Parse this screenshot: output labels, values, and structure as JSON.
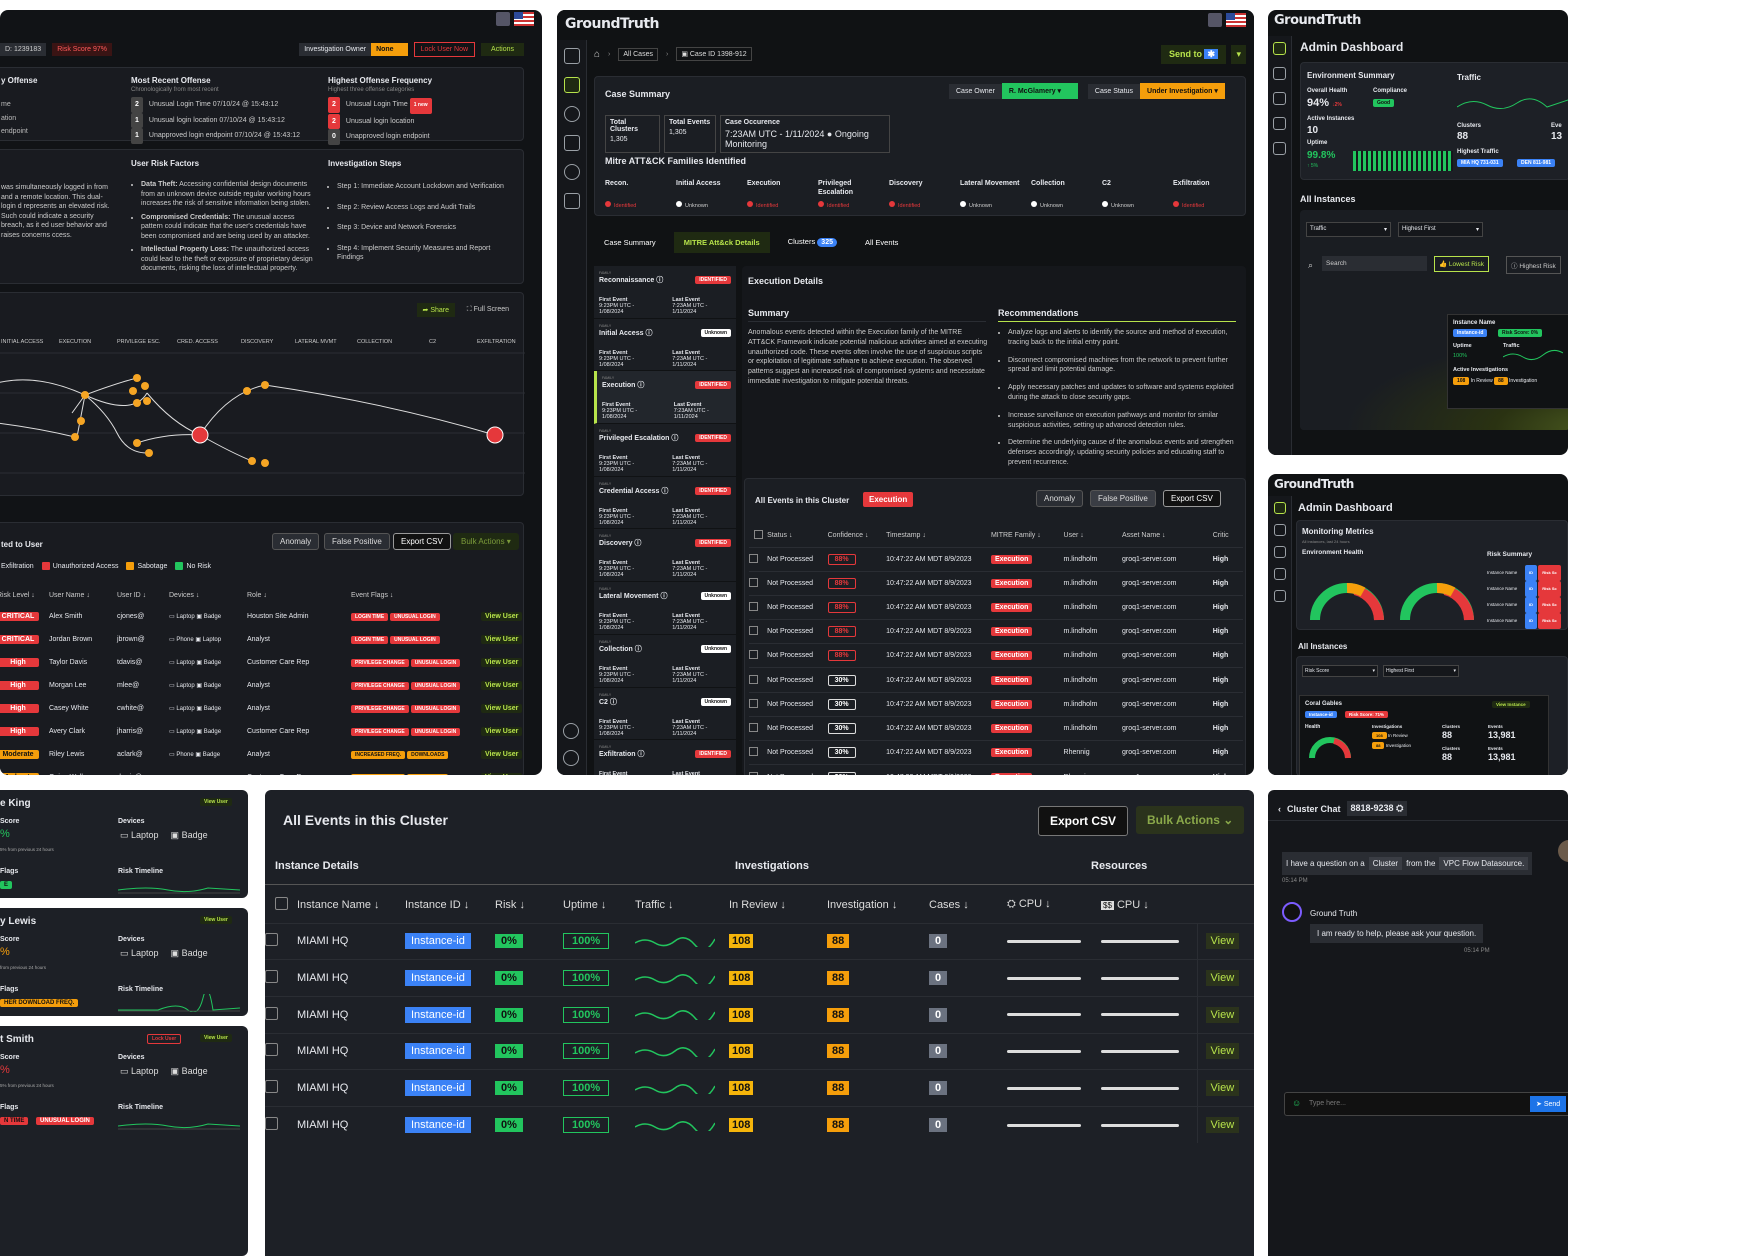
{
  "p1": {
    "user_id": "D: 1239183",
    "risk": "Risk Score 97%",
    "inv_owner": "Investigation Owner",
    "owner_val": "None",
    "lock": "Lock User Now",
    "actions": "Actions",
    "col1": "y Offense",
    "col2": "Most Recent Offense",
    "col2sub": "Chronologically from most recent",
    "col3": "Highest Offense Frequency",
    "col3sub": "Highest three offense categories",
    "left_lines": [
      "me",
      "ation",
      "endpoint"
    ],
    "recent": [
      [
        "2",
        "Unusual Login Time 07/10/24 @ 15:43:12"
      ],
      [
        "1",
        "Unusual login location 07/10/24 @ 15:43:12"
      ],
      [
        "1",
        "Unapproved login endpoint 07/10/24 @ 15:43:12"
      ]
    ],
    "freq": [
      [
        "2",
        "Unusual Login Time",
        "1 new"
      ],
      [
        "2",
        "Unusual login location",
        ""
      ],
      [
        "0",
        "Unapproved login endpoint",
        ""
      ]
    ],
    "urf": "User Risk Factors",
    "inv": "Investigation Steps",
    "left_text": "was simultaneously logged in from and a remote location. This dual-login d represents an elevated risk. Such could indicate a security breach, as it ed user behavior and raises concerns ccess.",
    "factors": [
      [
        "Data Theft:",
        "Accessing confidential design documents from an unknown device outside regular working hours increases the risk of sensitive information being stolen."
      ],
      [
        "Compromised Credentials:",
        "The unusual access pattern could indicate that the user's credentials have been compromised and are being used by an attacker."
      ],
      [
        "Intellectual Property Loss:",
        "The unauthorized access could lead to the theft or exposure of proprietary design documents, risking the loss of intellectual property."
      ]
    ],
    "steps": [
      "Step 1: Immediate Account Lockdown and Verification",
      "Step 2: Review Access Logs and Audit Trails",
      "Step 3: Device and Network Forensics",
      "Step 4: Implement Security Measures and Report Findings"
    ],
    "share": "Share",
    "full": "Full Screen",
    "stages": [
      "INITIAL ACCESS",
      "EXECUTION",
      "PRIVILEGE ESC.",
      "CRED. ACCESS",
      "DISCOVERY",
      "LATERAL MVMT",
      "COLLECTION",
      "C2",
      "EXFILTRATION"
    ],
    "rel": "ted to User",
    "anomaly": "Anomaly",
    "fp": "False Positive",
    "export": "Export CSV",
    "bulk": "Bulk Actions",
    "filters": [
      "Exfiltration",
      "Unauthorized Access",
      "Sabotage",
      "No Risk"
    ],
    "heads": [
      "Risk Level",
      "User Name",
      "User ID",
      "Devices",
      "Role",
      "Event Flags"
    ],
    "rows": [
      [
        "CRITICAL",
        "Alex Smith",
        "cjones@",
        "Laptop",
        "Badge",
        "Houston Site Admin",
        "LOGIN TIME",
        "UNUSUAL LOGIN"
      ],
      [
        "CRITICAL",
        "Jordan Brown",
        "jbrown@",
        "Phone",
        "Laptop",
        "Analyst",
        "LOGIN TIME",
        "UNUSUAL LOGIN"
      ],
      [
        "High",
        "Taylor Davis",
        "tdavis@",
        "Laptop",
        "Badge",
        "Customer Care Rep",
        "PRIVILEGE CHANGE",
        "UNUSUAL LOGIN"
      ],
      [
        "High",
        "Morgan Lee",
        "mlee@",
        "Laptop",
        "Badge",
        "Analyst",
        "PRIVILEGE CHANGE",
        "UNUSUAL LOGIN"
      ],
      [
        "High",
        "Casey White",
        "cwhite@",
        "Laptop",
        "Badge",
        "Analyst",
        "PRIVILEGE CHANGE",
        "UNUSUAL LOGIN"
      ],
      [
        "High",
        "Avery Clark",
        "jharris@",
        "Laptop",
        "Badge",
        "Customer Care Rep",
        "PRIVILEGE CHANGE",
        "UNUSUAL LOGIN"
      ],
      [
        "Moderate",
        "Riley Lewis",
        "aclark@",
        "Phone",
        "Badge",
        "Analyst",
        "INCREASED FREQ.",
        "DOWNLOADS"
      ],
      [
        "Moderate",
        "Quinn Walker",
        "rlewis@",
        "Laptop",
        "Badge",
        "Customer Care Rep",
        "INCREASED FREQ.",
        "DOWNLOADS"
      ]
    ],
    "view": "View User"
  },
  "p2": {
    "brand": "GroundTruth",
    "crumb1": "All Cases",
    "crumb2": "Case ID 1398-912",
    "send": "Send to",
    "cs": "Case Summary",
    "owner_l": "Case Owner",
    "owner_v": "R. McGlamery",
    "status_l": "Case Status",
    "status_v": "Under Investigation",
    "tc": "Total Clusters",
    "tc_v": "1,305",
    "te": "Total Events",
    "te_v": "1,305",
    "co": "Case Occurence",
    "co_v": "7:23AM UTC - 1/11/2024",
    "co_m": "Ongoing Monitoring",
    "mitre": "Mitre ATT&CK Families Identified",
    "fam": [
      [
        "Recon.",
        "Identified"
      ],
      [
        "Initial Access",
        "Unknown"
      ],
      [
        "Execution",
        "Identified"
      ],
      [
        "Privileged Escalation",
        "Identified"
      ],
      [
        "Discovery",
        "Identified"
      ],
      [
        "Lateral Movement",
        "Unknown"
      ],
      [
        "Collection",
        "Unknown"
      ],
      [
        "C2",
        "Unknown"
      ],
      [
        "Exfiltration",
        "Identified"
      ]
    ],
    "tabs": [
      "Case Summary",
      "MITRE Att&ck Details",
      "Clusters",
      "All Events"
    ],
    "clusters_n": "325",
    "side": [
      [
        "Reconnaissance",
        "IDENTIFIED"
      ],
      [
        "Initial Access",
        "Unknown"
      ],
      [
        "Execution",
        "IDENTIFIED"
      ],
      [
        "Privileged Escalation",
        "IDENTIFIED"
      ],
      [
        "Credential Access",
        "IDENTIFIED"
      ],
      [
        "Discovery",
        "IDENTIFIED"
      ],
      [
        "Lateral Movement",
        "Unknown"
      ],
      [
        "Collection",
        "Unknown"
      ],
      [
        "C2",
        "Unknown"
      ],
      [
        "Exfiltration",
        "IDENTIFIED"
      ]
    ],
    "fe": "First Event",
    "fe_v": "9:23PM UTC - 1/08/2024",
    "le": "Last Event",
    "le_v": "7:23AM UTC - 1/11/2024",
    "ed": "Execution Details",
    "sum": "Summary",
    "rec": "Recommendations",
    "sum_text": "Anomalous events detected within the Execution family of the MITRE ATT&CK Framework indicate potential malicious activities aimed at executing unauthorized code. These events often involve the use of suspicious scripts or exploitation of legitimate software to achieve execution. The observed patterns suggest an increased risk of compromised systems and necessitate immediate investigation to mitigate potential threats.",
    "recs": [
      "Analyze logs and alerts to identify the source and method of execution, tracing back to the initial entry point.",
      "Disconnect compromised machines from the network to prevent further spread and limit potential damage.",
      "Apply necessary patches and updates to software and systems exploited during the attack to close security gaps.",
      "Increase surveillance on execution pathways and monitor for similar suspicious activities, setting up advanced detection rules.",
      "Determine the underlying cause of the anomalous events and strengthen defenses accordingly, updating security policies and educating staff to prevent recurrence."
    ],
    "aec": "All Events in this Cluster",
    "exec": "Execution",
    "anomaly": "Anomaly",
    "fp": "False Positive",
    "export": "Export CSV",
    "eheads": [
      "Status",
      "Confidence",
      "Timestamp",
      "MITRE Family",
      "User",
      "Asset Name",
      "Critic"
    ],
    "erows": [
      [
        "Not Processed",
        "88%",
        "10:47:22 AM MDT 8/9/2023",
        "Execution",
        "m.lindholm",
        "groq1-server.com",
        "High"
      ],
      [
        "Not Processed",
        "88%",
        "10:47:22 AM MDT 8/9/2023",
        "Execution",
        "m.lindholm",
        "groq1-server.com",
        "High"
      ],
      [
        "Not Processed",
        "88%",
        "10:47:22 AM MDT 8/9/2023",
        "Execution",
        "m.lindholm",
        "groq1-server.com",
        "High"
      ],
      [
        "Not Processed",
        "88%",
        "10:47:22 AM MDT 8/9/2023",
        "Execution",
        "m.lindholm",
        "groq1-server.com",
        "High"
      ],
      [
        "Not Processed",
        "88%",
        "10:47:22 AM MDT 8/9/2023",
        "Execution",
        "m.lindholm",
        "groq1-server.com",
        "High"
      ],
      [
        "Not Processed",
        "30%",
        "10:47:22 AM MDT 8/9/2023",
        "Execution",
        "m.lindholm",
        "groq1-server.com",
        "High"
      ],
      [
        "Not Processed",
        "30%",
        "10:47:22 AM MDT 8/9/2023",
        "Execution",
        "m.lindholm",
        "groq1-server.com",
        "High"
      ],
      [
        "Not Processed",
        "30%",
        "10:47:22 AM MDT 8/9/2023",
        "Execution",
        "m.lindholm",
        "groq1-server.com",
        "High"
      ],
      [
        "Not Processed",
        "30%",
        "10:47:22 AM MDT 8/9/2023",
        "Execution",
        "Rhennig",
        "groq1-server.com",
        "High"
      ],
      [
        "Not Processed",
        "30%",
        "10:47:22 AM MDT 8/9/2023",
        "Execution",
        "Rhennig",
        "groq1-server.com",
        "High"
      ]
    ]
  },
  "p3": {
    "brand": "GroundTruth",
    "title": "Admin Dashboard",
    "env": "Environment Summary",
    "oh": "Overall Health",
    "oh_v": "94%",
    "oh_d": "↓2%",
    "comp": "Compliance",
    "comp_v": "Good",
    "ai": "Active Instances",
    "ai_v": "10",
    "up": "Uptime",
    "up_v": "99.8%",
    "up_d": "↑ 5%",
    "traffic": "Traffic",
    "clusters": "Clusters",
    "clusters_v": "88",
    "ev": "Eve",
    "ev_v": "13",
    "ht": "Highest Traffic",
    "ht1": "MIA HQ 731-031",
    "ht2": "DEN 811-981",
    "all": "All Instances",
    "f1": "Traffic",
    "f2": "Highest First",
    "search": "Search",
    "lr": "Lowest Risk",
    "hr": "Highest Risk",
    "pop_name": "Instance Name",
    "pop_id": "Instance-id",
    "pop_risk": "Risk Score: 0%",
    "pop_up": "Uptime",
    "pop_upv": "100%",
    "pop_tr": "Traffic",
    "pop_ai": "Active Investigations",
    "pop_rev": "108",
    "pop_revl": "In Review",
    "pop_inv": "88",
    "pop_invl": "Investigation"
  },
  "p4": {
    "brand": "GroundTruth",
    "title": "Admin Dashboard",
    "mm": "Monitoring Metrics",
    "mm_sub": "All instances, last 24 hours",
    "eh": "Environment Health",
    "rs": "Risk Summary",
    "in": "Instance Name",
    "id": "ID",
    "rsv": "Risk Sc",
    "all": "All Instances",
    "f1": "Risk Score",
    "f2": "Highest First",
    "card": "Coral Gables",
    "card_id": "Instance-id",
    "card_r": "Risk Score: 71%",
    "vi": "View Instance",
    "health": "Health",
    "invs": "Investigations",
    "rev": "108",
    "revl": "In Review",
    "inv": "88",
    "invl": "Investigation",
    "cl": "Clusters",
    "cl_v": "88",
    "ev": "Events",
    "ev_v": "13,981",
    "cl2": "Clusters",
    "cl2_v": "88",
    "ev2": "Events",
    "ev2_v": "13,981"
  },
  "p5": {
    "cards": [
      {
        "name": "e King",
        "score": "Score",
        "pct": "%",
        "delta": "5% from previous 24 hours",
        "dev": "Devices",
        "d1": "Laptop",
        "d2": "Badge",
        "flags": "Flags",
        "flag": "E",
        "tl": "Risk Timeline",
        "btn": "View User"
      },
      {
        "name": "y Lewis",
        "score": "Score",
        "pct": "%",
        "delta": "from previous 24 hours",
        "dev": "Devices",
        "d1": "Laptop",
        "d2": "Badge",
        "flags": "Flags",
        "flag": "HER DOWNLOAD FREQ.",
        "tl": "Risk Timeline",
        "btn": "View User"
      },
      {
        "name": "t Smith",
        "score": "Score",
        "pct": "%",
        "delta": "5% from previous 24 hours",
        "dev": "Devices",
        "d1": "Laptop",
        "d2": "Badge",
        "flags": "Flags",
        "flag": "N TIME",
        "flag2": "UNUSUAL LOGIN",
        "tl": "Risk Timeline",
        "btn": "View User",
        "lock": "Lock User"
      }
    ]
  },
  "p6": {
    "title": "All Events in this Cluster",
    "export": "Export CSV",
    "bulk": "Bulk Actions",
    "g1": "Instance Details",
    "g2": "Investigations",
    "g3": "Resources",
    "heads": [
      "Instance Name",
      "Instance ID",
      "Risk",
      "Uptime",
      "Traffic",
      "In Review",
      "Investigation",
      "Cases",
      "CPU",
      "CPU"
    ],
    "row": {
      "name": "MIAMI HQ",
      "id": "Instance-id",
      "risk": "0%",
      "up": "100%",
      "rev": "108",
      "inv": "88",
      "cases": "0",
      "view": "View"
    }
  },
  "p7": {
    "title": "Cluster Chat",
    "id": "8818-9238",
    "q1": "I have a question on a",
    "q2": "Cluster",
    "q3": "from the",
    "q4": "VPC Flow Datasource.",
    "t1": "05:14 PM",
    "bot": "Ground Truth",
    "ans": "I am ready to help, please ask your question.",
    "t2": "05:14 PM",
    "ph": "Type here...",
    "send": "Send"
  }
}
